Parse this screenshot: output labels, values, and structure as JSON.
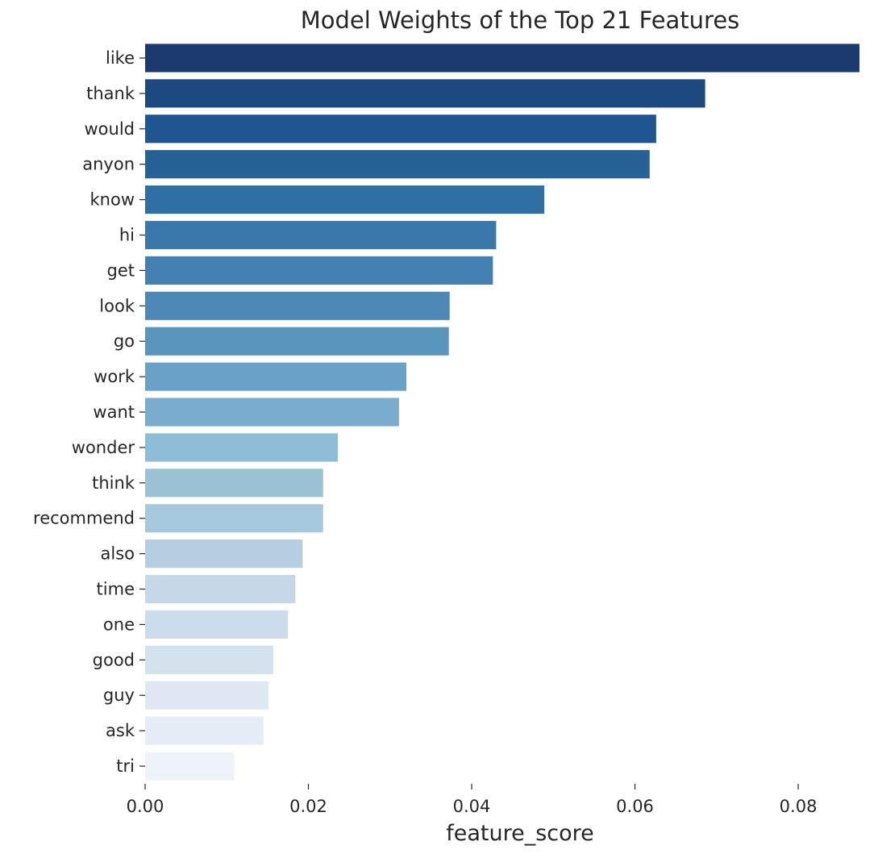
{
  "chart_data": {
    "type": "bar",
    "orientation": "horizontal",
    "title": "Model Weights of the Top 21 Features",
    "xlabel": "feature_score",
    "ylabel": "",
    "xlim": [
      0,
      0.0875
    ],
    "xticks": [
      0.0,
      0.02,
      0.04,
      0.06,
      0.08
    ],
    "xtick_labels": [
      "0.00",
      "0.02",
      "0.04",
      "0.06",
      "0.08"
    ],
    "grid": false,
    "legend": "none",
    "palette": "Blues_r",
    "categories": [
      "like",
      "thank",
      "would",
      "anyon",
      "know",
      "hi",
      "get",
      "look",
      "go",
      "work",
      "want",
      "wonder",
      "think",
      "recommend",
      "also",
      "time",
      "one",
      "good",
      "guy",
      "ask",
      "tri"
    ],
    "values": [
      0.0875,
      0.0686,
      0.0626,
      0.0618,
      0.0489,
      0.043,
      0.0426,
      0.0373,
      0.0372,
      0.032,
      0.0311,
      0.0236,
      0.0218,
      0.0218,
      0.0193,
      0.0184,
      0.0175,
      0.0157,
      0.0151,
      0.0145,
      0.0109
    ],
    "colors": [
      "#1b3a6f",
      "#1c4a80",
      "#1f5591",
      "#276297",
      "#306fa4",
      "#3a78ac",
      "#447fb1",
      "#4e88b7",
      "#5a95be",
      "#6aa1c6",
      "#7aadcd",
      "#8dbcd6",
      "#9cc3d5",
      "#a6c8dc",
      "#b6cee1",
      "#c5d8e8",
      "#ccdceb",
      "#d4e2ee",
      "#dfe8f2",
      "#e6edf6",
      "#eef3fa"
    ]
  }
}
